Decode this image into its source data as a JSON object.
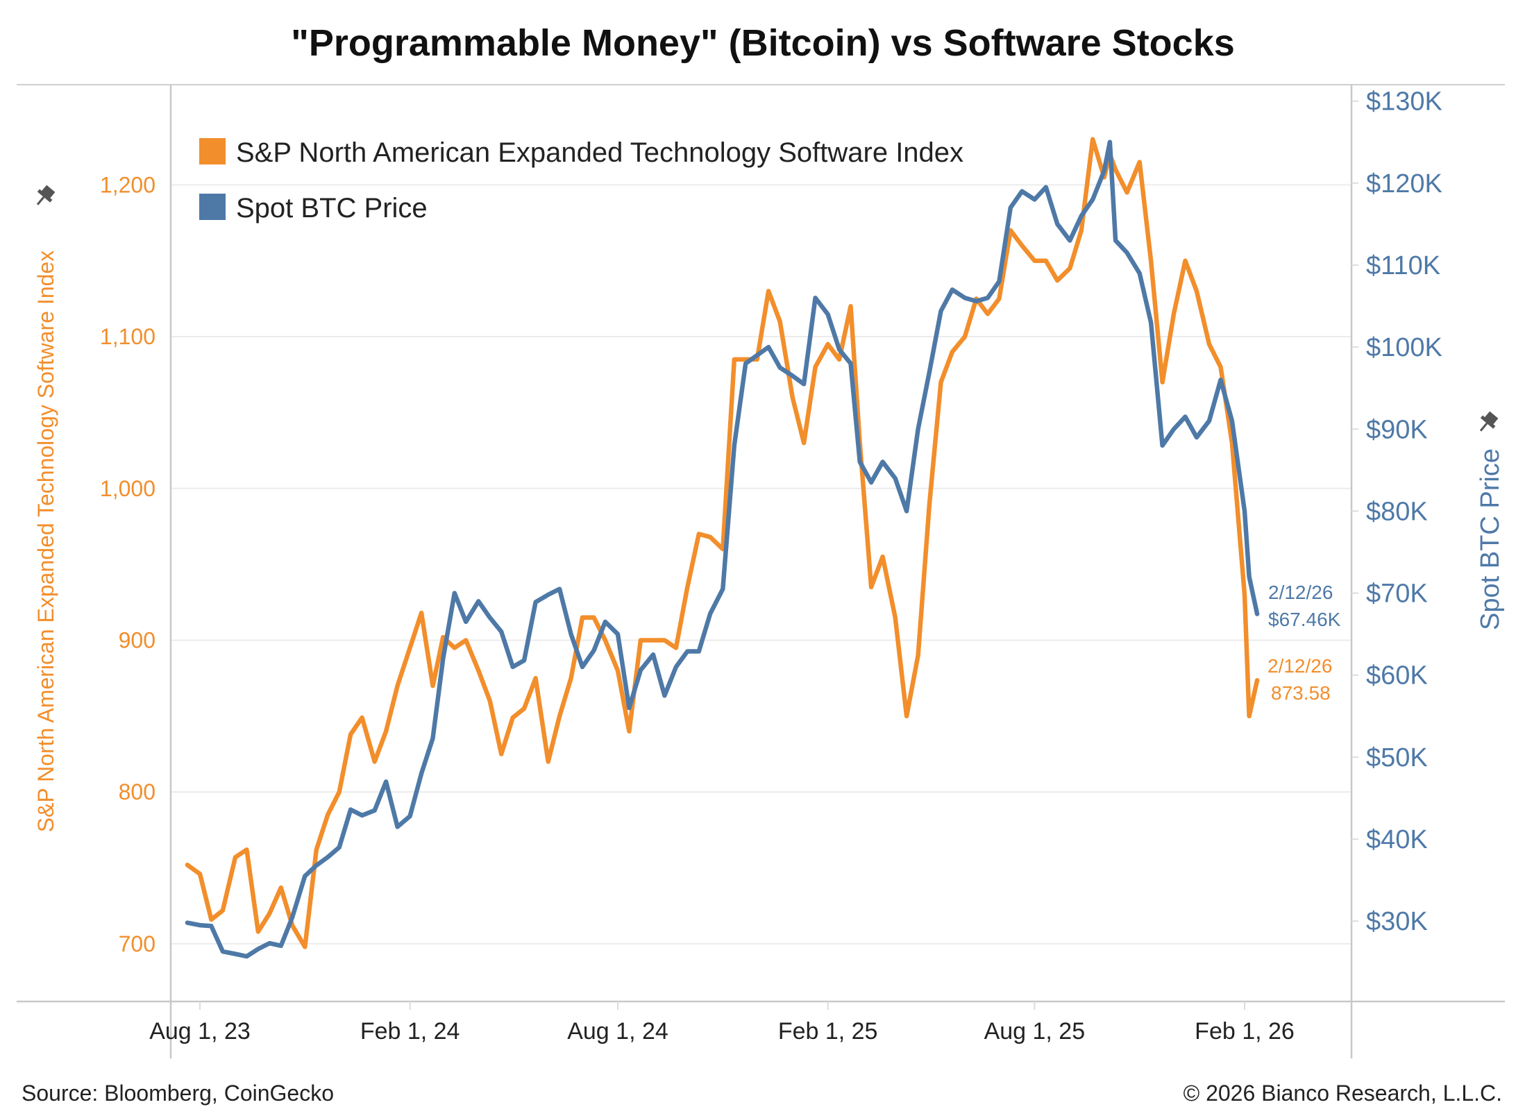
{
  "chart_data": {
    "type": "line",
    "title": "\"Programmable Money\" (Bitcoin) vs Software Stocks",
    "legend_placement": "top-left",
    "grid": true,
    "x_ticks": [
      {
        "date": "2023-08-01",
        "label": "Aug 1, 23"
      },
      {
        "date": "2024-02-01",
        "label": "Feb 1, 24"
      },
      {
        "date": "2024-08-01",
        "label": "Aug 1, 24"
      },
      {
        "date": "2025-02-01",
        "label": "Feb 1, 25"
      },
      {
        "date": "2025-08-01",
        "label": "Aug 1, 25"
      },
      {
        "date": "2026-02-01",
        "label": "Feb 1, 26"
      }
    ],
    "y_left": {
      "label": "S&P North American Expanded Technology Software Index",
      "range": [
        662,
        1266
      ],
      "ticks": [
        {
          "v": 700,
          "label": "700"
        },
        {
          "v": 800,
          "label": "800"
        },
        {
          "v": 900,
          "label": "900"
        },
        {
          "v": 1000,
          "label": "1,000"
        },
        {
          "v": 1100,
          "label": "1,100"
        },
        {
          "v": 1200,
          "label": "1,200"
        }
      ],
      "color": "#F28E2B"
    },
    "y_right": {
      "label": "Spot BTC Price",
      "range": [
        20.2,
        132
      ],
      "unit": "thousand USD",
      "ticks": [
        {
          "v": 30,
          "label": "$30K"
        },
        {
          "v": 40,
          "label": "$40K"
        },
        {
          "v": 50,
          "label": "$50K"
        },
        {
          "v": 60,
          "label": "$60K"
        },
        {
          "v": 70,
          "label": "$70K"
        },
        {
          "v": 80,
          "label": "$80K"
        },
        {
          "v": 90,
          "label": "$90K"
        },
        {
          "v": 100,
          "label": "$100K"
        },
        {
          "v": 110,
          "label": "$110K"
        },
        {
          "v": 120,
          "label": "$120K"
        },
        {
          "v": 130,
          "label": "$130K"
        }
      ],
      "color": "#4E79A7"
    },
    "dates": [
      "2023-07-21",
      "2023-08-01",
      "2023-08-11",
      "2023-08-21",
      "2023-09-01",
      "2023-09-11",
      "2023-09-21",
      "2023-10-01",
      "2023-10-11",
      "2023-10-21",
      "2023-11-01",
      "2023-11-11",
      "2023-11-21",
      "2023-12-01",
      "2023-12-11",
      "2023-12-21",
      "2024-01-01",
      "2024-01-11",
      "2024-01-21",
      "2024-02-01",
      "2024-02-11",
      "2024-02-21",
      "2024-03-01",
      "2024-03-11",
      "2024-03-21",
      "2024-04-01",
      "2024-04-11",
      "2024-04-21",
      "2024-05-01",
      "2024-05-11",
      "2024-05-21",
      "2024-06-01",
      "2024-06-11",
      "2024-06-21",
      "2024-07-01",
      "2024-07-11",
      "2024-07-21",
      "2024-08-01",
      "2024-08-11",
      "2024-08-21",
      "2024-09-01",
      "2024-09-11",
      "2024-09-21",
      "2024-10-01",
      "2024-10-11",
      "2024-10-21",
      "2024-11-01",
      "2024-11-11",
      "2024-11-21",
      "2024-12-01",
      "2024-12-11",
      "2024-12-21",
      "2025-01-01",
      "2025-01-11",
      "2025-01-21",
      "2025-02-01",
      "2025-02-11",
      "2025-02-21",
      "2025-03-01",
      "2025-03-11",
      "2025-03-21",
      "2025-04-01",
      "2025-04-11",
      "2025-04-21",
      "2025-05-01",
      "2025-05-11",
      "2025-05-21",
      "2025-06-01",
      "2025-06-11",
      "2025-06-21",
      "2025-07-01",
      "2025-07-11",
      "2025-07-21",
      "2025-08-01",
      "2025-08-11",
      "2025-08-21",
      "2025-09-01",
      "2025-09-11",
      "2025-09-21",
      "2025-10-01",
      "2025-10-06",
      "2025-10-11",
      "2025-10-21",
      "2025-11-01",
      "2025-11-11",
      "2025-11-21",
      "2025-12-01",
      "2025-12-11",
      "2025-12-21",
      "2026-01-01",
      "2026-01-11",
      "2026-01-21",
      "2026-02-01",
      "2026-02-05",
      "2026-02-12"
    ],
    "series": [
      {
        "name": "S&P North American Expanded Technology Software Index",
        "axis": "left",
        "color": "#F28E2B",
        "values": [
          752,
          746,
          716,
          722,
          757,
          762,
          708,
          720,
          737,
          712,
          698,
          762,
          785,
          800,
          838,
          849,
          820,
          840,
          870,
          895,
          918,
          870,
          902,
          895,
          900,
          880,
          860,
          825,
          849,
          855,
          875,
          820,
          850,
          875,
          915,
          915,
          900,
          880,
          840,
          900,
          900,
          900,
          895,
          935,
          970,
          968,
          960,
          1085,
          1085,
          1085,
          1130,
          1110,
          1060,
          1030,
          1080,
          1095,
          1085,
          1120,
          1030,
          935,
          955,
          915,
          850,
          890,
          990,
          1070,
          1090,
          1100,
          1125,
          1115,
          1125,
          1170,
          1160,
          1150,
          1150,
          1137,
          1145,
          1170,
          1230,
          1205,
          1220,
          1210,
          1195,
          1215,
          1150,
          1070,
          1115,
          1150,
          1130,
          1095,
          1080,
          1030,
          930,
          850,
          873.58
        ]
      },
      {
        "name": "Spot BTC Price",
        "axis": "right",
        "color": "#4E79A7",
        "values": [
          29.8,
          29.5,
          29.4,
          26.3,
          26.0,
          25.7,
          26.6,
          27.3,
          27.0,
          30.5,
          35.5,
          36.8,
          37.8,
          39.0,
          43.6,
          42.9,
          43.5,
          47.0,
          41.5,
          42.8,
          48.0,
          52.3,
          62.0,
          70.0,
          66.5,
          69.0,
          67.0,
          65.3,
          61.0,
          61.8,
          68.9,
          69.8,
          70.5,
          65.0,
          61.0,
          63.0,
          66.5,
          65.0,
          56.0,
          60.6,
          62.5,
          57.5,
          61.0,
          62.9,
          62.9,
          67.5,
          70.5,
          88.0,
          98.0,
          99.0,
          100.0,
          97.5,
          96.5,
          95.5,
          106.0,
          104.0,
          99.7,
          98.0,
          86.0,
          83.5,
          86.0,
          84.0,
          80.0,
          90.0,
          97.0,
          104.4,
          107.0,
          106.0,
          105.6,
          106.0,
          108.0,
          117.0,
          119.0,
          118.0,
          119.5,
          115.0,
          113.0,
          116.0,
          118.0,
          121.5,
          125.0,
          113.0,
          111.5,
          109.0,
          103.0,
          88.0,
          90.0,
          91.5,
          89.0,
          91.0,
          96.0,
          91.0,
          80.0,
          72.0,
          67.46
        ]
      }
    ],
    "annotations": [
      {
        "series": "Spot BTC Price",
        "date_label": "2/12/26",
        "value_label": "$67.46K",
        "color": "#4E79A7"
      },
      {
        "series": "S&P North American Expanded Technology Software Index",
        "date_label": "2/12/26",
        "value_label": "873.58",
        "color": "#F28E2B"
      }
    ]
  },
  "footer": {
    "source": "Source: Bloomberg, CoinGecko",
    "copyright": "© 2026 Bianco Research, L.L.C."
  },
  "icons": {
    "axis_pin": "pin-icon"
  }
}
